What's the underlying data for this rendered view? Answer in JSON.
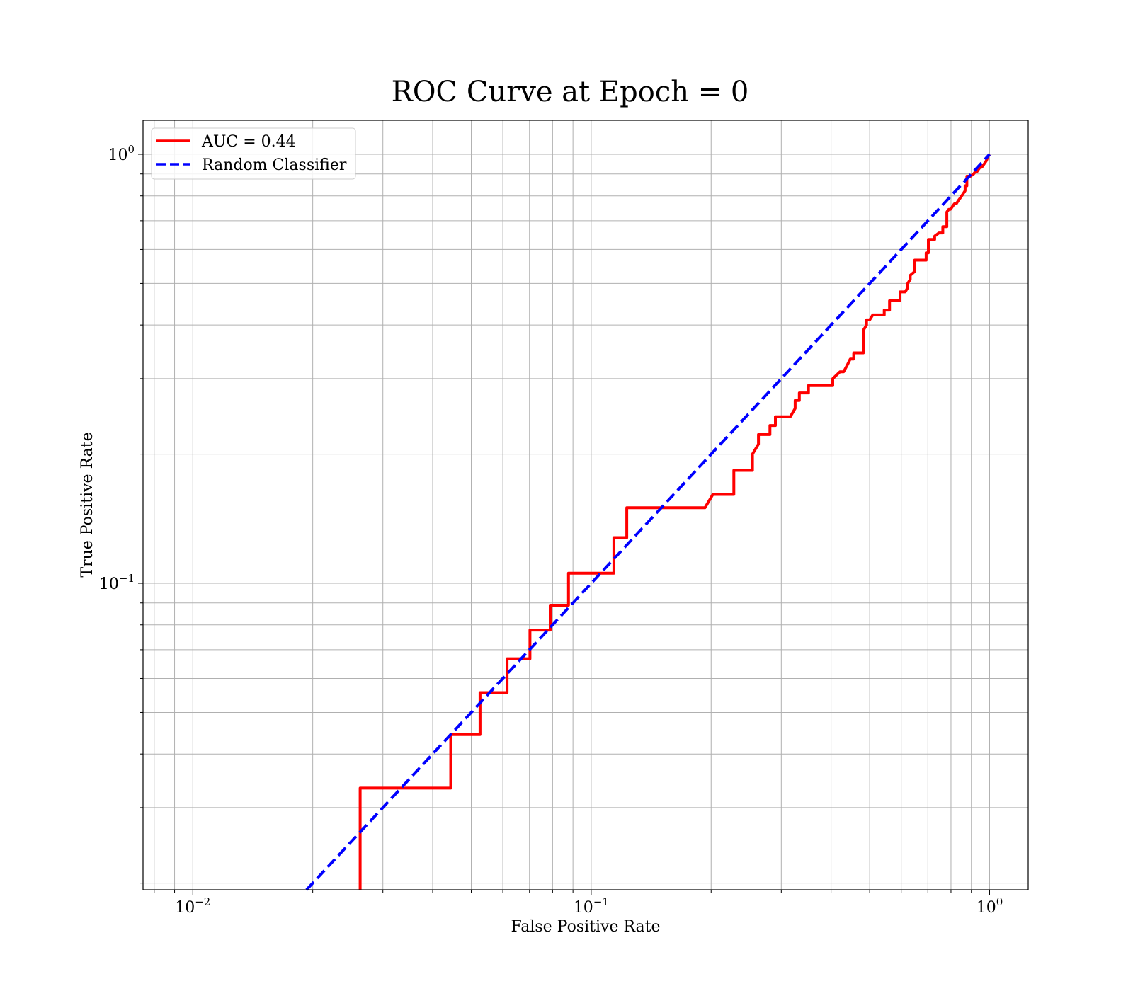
{
  "chart_data": {
    "type": "line",
    "title": "ROC Curve at Epoch = 0",
    "xlabel": "False Positive Rate",
    "ylabel": "True Positive Rate",
    "xscale": "log",
    "yscale": "log",
    "xlim": [
      0.0075,
      1.25
    ],
    "ylim": [
      0.0193,
      1.2
    ],
    "grid": "major and minor",
    "legend_position": "upper left",
    "x_ticks": [
      {
        "value": 0.01,
        "base": "10",
        "exp": "−2"
      },
      {
        "value": 0.1,
        "base": "10",
        "exp": "−1"
      },
      {
        "value": 1,
        "base": "10",
        "exp": "0"
      }
    ],
    "y_ticks": [
      {
        "value": 0.1,
        "base": "10",
        "exp": "−1"
      },
      {
        "value": 1,
        "base": "10",
        "exp": "0"
      }
    ],
    "series": [
      {
        "name": "AUC = 0.44",
        "color": "#ff0000",
        "style": "solid",
        "x": [
          0.0263,
          0.0263,
          0.0444,
          0.0444,
          0.0526,
          0.0526,
          0.0615,
          0.0615,
          0.0702,
          0.0702,
          0.0789,
          0.0789,
          0.0877,
          0.0877,
          0.1053,
          0.114,
          0.114,
          0.1228,
          0.1228,
          0.193,
          0.202,
          0.228,
          0.228,
          0.254,
          0.254,
          0.263,
          0.263,
          0.281,
          0.281,
          0.29,
          0.29,
          0.316,
          0.325,
          0.325,
          0.333,
          0.333,
          0.351,
          0.351,
          0.404,
          0.404,
          0.421,
          0.43,
          0.439,
          0.447,
          0.456,
          0.456,
          0.482,
          0.482,
          0.491,
          0.491,
          0.5,
          0.509,
          0.544,
          0.544,
          0.561,
          0.561,
          0.596,
          0.596,
          0.614,
          0.623,
          0.623,
          0.632,
          0.632,
          0.649,
          0.649,
          0.693,
          0.693,
          0.702,
          0.702,
          0.728,
          0.728,
          0.746,
          0.763,
          0.763,
          0.781,
          0.781,
          0.79,
          0.798,
          0.807,
          0.816,
          0.825,
          0.833,
          0.842,
          0.851,
          0.86,
          0.868,
          0.868,
          0.877,
          0.877,
          0.895,
          0.912,
          0.921,
          0.93,
          0.938,
          0.947,
          0.956,
          0.965,
          0.974,
          0.982,
          0.991,
          1.0
        ],
        "y": [
          0.0193,
          0.0333,
          0.0333,
          0.0444,
          0.0444,
          0.0556,
          0.0556,
          0.0667,
          0.0667,
          0.0778,
          0.0778,
          0.0889,
          0.0889,
          0.1056,
          0.1056,
          0.1056,
          0.1278,
          0.1278,
          0.15,
          0.15,
          0.1611,
          0.1611,
          0.1833,
          0.1833,
          0.2,
          0.2111,
          0.2222,
          0.2222,
          0.2333,
          0.2333,
          0.2444,
          0.2444,
          0.2556,
          0.2667,
          0.2667,
          0.2778,
          0.2778,
          0.2889,
          0.2889,
          0.3,
          0.3111,
          0.3111,
          0.3222,
          0.3333,
          0.3333,
          0.3444,
          0.3444,
          0.3889,
          0.4,
          0.4111,
          0.4111,
          0.4222,
          0.4222,
          0.4333,
          0.4333,
          0.4556,
          0.4556,
          0.4778,
          0.4778,
          0.4889,
          0.5,
          0.5111,
          0.5222,
          0.5333,
          0.5667,
          0.5667,
          0.5889,
          0.5889,
          0.6333,
          0.6333,
          0.6444,
          0.6556,
          0.6556,
          0.6778,
          0.6778,
          0.7333,
          0.7444,
          0.7444,
          0.7556,
          0.7667,
          0.7667,
          0.7778,
          0.7889,
          0.8,
          0.8111,
          0.8222,
          0.8444,
          0.8444,
          0.8889,
          0.8889,
          0.9,
          0.9111,
          0.9111,
          0.9222,
          0.9333,
          0.9333,
          0.9444,
          0.9556,
          0.9667,
          0.9889,
          1.0
        ]
      },
      {
        "name": "Random Classifier",
        "color": "#0000ff",
        "style": "dashed",
        "x": [
          0.0193,
          1.0
        ],
        "y": [
          0.0193,
          1.0
        ]
      }
    ]
  }
}
